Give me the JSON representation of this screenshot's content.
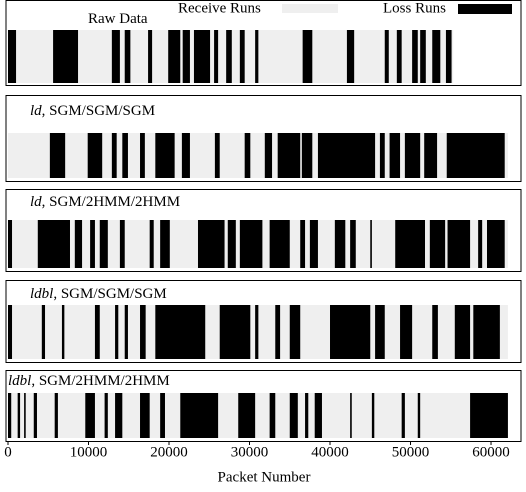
{
  "chart_data": {
    "type": "runs",
    "xlabel": "Packet Number",
    "xlim": [
      0,
      63600
    ],
    "xticks": [
      0,
      10000,
      20000,
      30000,
      40000,
      50000,
      60000
    ],
    "series": [
      {
        "name": "Receive Runs",
        "color": "#efefef"
      },
      {
        "name": "Loss Runs",
        "color": "#000000"
      }
    ],
    "panels": [
      {
        "title": [
          "Raw Data"
        ],
        "length": 55300,
        "loss_runs": [
          [
            0,
            1000
          ],
          [
            5600,
            8700
          ],
          [
            12900,
            13900
          ],
          [
            14500,
            15200
          ],
          [
            17400,
            17900
          ],
          [
            19900,
            21400
          ],
          [
            21700,
            22600
          ],
          [
            23100,
            25100
          ],
          [
            25600,
            26100
          ],
          [
            27100,
            27800
          ],
          [
            28800,
            29400
          ],
          [
            30700,
            31100
          ],
          [
            36600,
            37800
          ],
          [
            42100,
            43000
          ],
          [
            46800,
            47300
          ],
          [
            48300,
            48900
          ],
          [
            50200,
            50900
          ],
          [
            51200,
            51900
          ],
          [
            52700,
            53700
          ],
          [
            54400,
            55100
          ]
        ]
      },
      {
        "title": [
          "ld",
          ", SGM/SGM/SGM"
        ],
        "length": 62100,
        "loss_runs": [
          [
            5200,
            7100
          ],
          [
            9900,
            11700
          ],
          [
            12900,
            13500
          ],
          [
            14200,
            14900
          ],
          [
            16400,
            17000
          ],
          [
            18300,
            20700
          ],
          [
            21600,
            22600
          ],
          [
            25700,
            26300
          ],
          [
            29400,
            30100
          ],
          [
            31900,
            32800
          ],
          [
            33500,
            36300
          ],
          [
            36500,
            37800
          ],
          [
            38500,
            45600
          ],
          [
            46200,
            46800
          ],
          [
            47400,
            48700
          ],
          [
            49300,
            51200
          ],
          [
            51700,
            53300
          ],
          [
            54500,
            61700
          ]
        ]
      },
      {
        "title": [
          "ld",
          ", SGM/2HMM/2HMM"
        ],
        "length": 62100,
        "loss_runs": [
          [
            0,
            500
          ],
          [
            3700,
            7700
          ],
          [
            8300,
            9200
          ],
          [
            10200,
            10800
          ],
          [
            11400,
            12400
          ],
          [
            13900,
            14500
          ],
          [
            17600,
            18100
          ],
          [
            18900,
            20100
          ],
          [
            23600,
            26900
          ],
          [
            27300,
            28300
          ],
          [
            28800,
            31600
          ],
          [
            32500,
            35000
          ],
          [
            36300,
            36900
          ],
          [
            37500,
            38500
          ],
          [
            40600,
            41900
          ],
          [
            42500,
            43200
          ],
          [
            45000,
            45200
          ],
          [
            48100,
            51800
          ],
          [
            52400,
            54300
          ],
          [
            54600,
            57400
          ],
          [
            58400,
            58900
          ],
          [
            59500,
            61700
          ]
        ]
      },
      {
        "title": [
          "ldbl",
          ", SGM/SGM/SGM"
        ],
        "length": 62100,
        "loss_runs": [
          [
            0,
            500
          ],
          [
            4200,
            4600
          ],
          [
            6700,
            7000
          ],
          [
            10800,
            11400
          ],
          [
            13300,
            13700
          ],
          [
            14500,
            14900
          ],
          [
            16400,
            17100
          ],
          [
            18300,
            24500
          ],
          [
            26300,
            30100
          ],
          [
            30700,
            31100
          ],
          [
            33200,
            33800
          ],
          [
            35000,
            36300
          ],
          [
            40000,
            45000
          ],
          [
            45600,
            46800
          ],
          [
            48700,
            50200
          ],
          [
            52700,
            53400
          ],
          [
            55500,
            57400
          ],
          [
            57800,
            61100
          ]
        ]
      },
      {
        "title": [
          "ldbl",
          ", SGM/2HMM/2HMM"
        ],
        "length": 62100,
        "loss_runs": [
          [
            0,
            400
          ],
          [
            1200,
            1500
          ],
          [
            2000,
            2200
          ],
          [
            3200,
            3600
          ],
          [
            5800,
            6200
          ],
          [
            9600,
            10800
          ],
          [
            12000,
            12400
          ],
          [
            13300,
            14200
          ],
          [
            16400,
            17600
          ],
          [
            18900,
            19500
          ],
          [
            21400,
            26100
          ],
          [
            28600,
            30700
          ],
          [
            32500,
            33200
          ],
          [
            35000,
            36000
          ],
          [
            36900,
            37300
          ],
          [
            38100,
            39000
          ],
          [
            42500,
            42700
          ],
          [
            45200,
            45500
          ],
          [
            48900,
            49300
          ],
          [
            50900,
            51200
          ],
          [
            57400,
            62100
          ]
        ]
      }
    ]
  }
}
